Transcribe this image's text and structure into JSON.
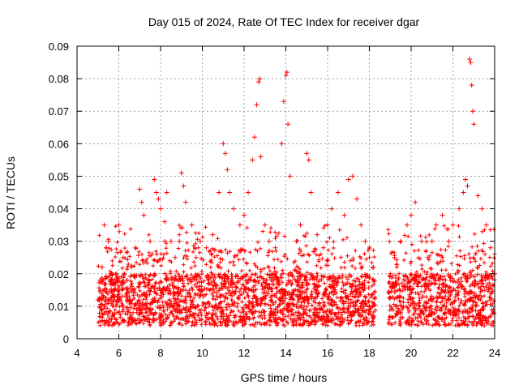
{
  "chart_data": {
    "type": "scatter",
    "title": "Day 015 of 2024, Rate Of TEC Index for receiver dgar",
    "xlabel": "GPS time / hours",
    "ylabel": "ROTI / TECUs",
    "xlim": [
      4,
      24
    ],
    "ylim": [
      0,
      0.09
    ],
    "xticks": [
      "4",
      "6",
      "8",
      "10",
      "12",
      "14",
      "16",
      "18",
      "20",
      "22",
      "24"
    ],
    "yticks": [
      "0",
      "0.01",
      "0.02",
      "0.03",
      "0.04",
      "0.05",
      "0.06",
      "0.07",
      "0.08",
      "0.09"
    ],
    "grid": true,
    "marker": "+",
    "color": "#ff0000",
    "data_gap_hours": [
      18.3,
      18.9
    ],
    "series": [
      {
        "name": "ROTI",
        "points": [
          [
            5.0,
            0.012
          ],
          [
            5.1,
            0.018
          ],
          [
            5.2,
            0.022
          ],
          [
            5.3,
            0.035
          ],
          [
            5.4,
            0.028
          ],
          [
            5.5,
            0.03
          ],
          [
            5.6,
            0.02
          ],
          [
            5.8,
            0.015
          ],
          [
            6.0,
            0.035
          ],
          [
            6.2,
            0.025
          ],
          [
            6.4,
            0.018
          ],
          [
            6.6,
            0.022
          ],
          [
            6.8,
            0.028
          ],
          [
            7.0,
            0.046
          ],
          [
            7.1,
            0.042
          ],
          [
            7.2,
            0.038
          ],
          [
            7.5,
            0.03
          ],
          [
            7.7,
            0.049
          ],
          [
            7.8,
            0.045
          ],
          [
            7.9,
            0.043
          ],
          [
            8.0,
            0.04
          ],
          [
            8.2,
            0.036
          ],
          [
            8.3,
            0.045
          ],
          [
            8.5,
            0.03
          ],
          [
            8.7,
            0.025
          ],
          [
            8.9,
            0.03
          ],
          [
            9.0,
            0.051
          ],
          [
            9.1,
            0.047
          ],
          [
            9.2,
            0.042
          ],
          [
            9.5,
            0.035
          ],
          [
            9.7,
            0.025
          ],
          [
            9.9,
            0.03
          ],
          [
            10.2,
            0.028
          ],
          [
            10.5,
            0.032
          ],
          [
            10.8,
            0.045
          ],
          [
            11.0,
            0.06
          ],
          [
            11.1,
            0.057
          ],
          [
            11.2,
            0.052
          ],
          [
            11.3,
            0.045
          ],
          [
            11.5,
            0.04
          ],
          [
            11.8,
            0.035
          ],
          [
            12.0,
            0.038
          ],
          [
            12.2,
            0.045
          ],
          [
            12.4,
            0.055
          ],
          [
            12.5,
            0.062
          ],
          [
            12.6,
            0.072
          ],
          [
            12.7,
            0.079
          ],
          [
            12.75,
            0.08
          ],
          [
            12.8,
            0.056
          ],
          [
            13.0,
            0.035
          ],
          [
            13.2,
            0.03
          ],
          [
            13.5,
            0.028
          ],
          [
            13.8,
            0.06
          ],
          [
            13.9,
            0.073
          ],
          [
            14.0,
            0.081
          ],
          [
            14.05,
            0.082
          ],
          [
            14.1,
            0.066
          ],
          [
            14.2,
            0.05
          ],
          [
            14.5,
            0.03
          ],
          [
            14.7,
            0.035
          ],
          [
            15.0,
            0.057
          ],
          [
            15.1,
            0.055
          ],
          [
            15.2,
            0.045
          ],
          [
            15.5,
            0.032
          ],
          [
            15.8,
            0.028
          ],
          [
            16.0,
            0.035
          ],
          [
            16.2,
            0.04
          ],
          [
            16.5,
            0.045
          ],
          [
            16.8,
            0.038
          ],
          [
            17.0,
            0.049
          ],
          [
            17.2,
            0.05
          ],
          [
            17.4,
            0.043
          ],
          [
            17.6,
            0.035
          ],
          [
            17.8,
            0.03
          ],
          [
            18.0,
            0.025
          ],
          [
            18.2,
            0.022
          ],
          [
            19.0,
            0.02
          ],
          [
            19.2,
            0.025
          ],
          [
            19.5,
            0.03
          ],
          [
            19.8,
            0.035
          ],
          [
            20.0,
            0.038
          ],
          [
            20.2,
            0.042
          ],
          [
            20.5,
            0.03
          ],
          [
            20.8,
            0.025
          ],
          [
            21.0,
            0.03
          ],
          [
            21.2,
            0.035
          ],
          [
            21.5,
            0.038
          ],
          [
            21.8,
            0.03
          ],
          [
            22.0,
            0.035
          ],
          [
            22.3,
            0.04
          ],
          [
            22.5,
            0.045
          ],
          [
            22.6,
            0.049
          ],
          [
            22.7,
            0.047
          ],
          [
            22.8,
            0.086
          ],
          [
            22.85,
            0.085
          ],
          [
            22.9,
            0.078
          ],
          [
            22.95,
            0.07
          ],
          [
            23.0,
            0.066
          ],
          [
            23.2,
            0.044
          ],
          [
            23.4,
            0.04
          ],
          [
            23.6,
            0.035
          ],
          [
            23.8,
            0.028
          ],
          [
            24.0,
            0.02
          ],
          [
            5.5,
            0.008
          ],
          [
            6.5,
            0.006
          ],
          [
            7.5,
            0.009
          ],
          [
            8.5,
            0.005
          ],
          [
            9.5,
            0.007
          ],
          [
            10.5,
            0.006
          ],
          [
            11.5,
            0.005
          ],
          [
            12.5,
            0.004
          ],
          [
            13.5,
            0.006
          ],
          [
            14.5,
            0.005
          ],
          [
            15.5,
            0.007
          ],
          [
            16.5,
            0.006
          ],
          [
            17.5,
            0.008
          ],
          [
            18.0,
            0.009
          ],
          [
            19.5,
            0.006
          ],
          [
            20.5,
            0.005
          ],
          [
            21.5,
            0.006
          ],
          [
            22.5,
            0.005
          ],
          [
            23.5,
            0.004
          ]
        ]
      }
    ]
  }
}
